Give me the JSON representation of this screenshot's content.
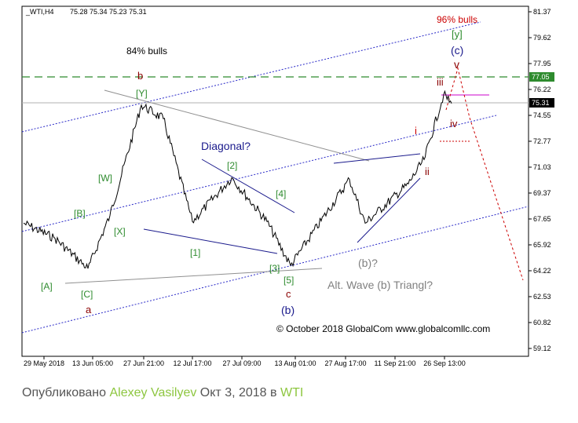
{
  "chart_data": {
    "type": "line",
    "symbol": "_WTI,H4",
    "ohlc_header": "75.28 75.34 75.23 75.31",
    "y_ticks": [
      "81.37",
      "79.62",
      "77.95",
      "76.22",
      "74.55",
      "72.77",
      "71.03",
      "69.37",
      "67.65",
      "65.92",
      "64.22",
      "62.53",
      "60.82",
      "59.12"
    ],
    "x_ticks": [
      "29 May 2018",
      "13 Jun 05:00",
      "27 Jun 21:00",
      "12 Jul 17:00",
      "27 Jul 09:00",
      "13 Aug 01:00",
      "27 Aug 17:00",
      "11 Sep 21:00",
      "26 Sep 13:00"
    ],
    "ylim": [
      59.12,
      81.37
    ],
    "price_labels": {
      "level_line": "77.05",
      "current": "75.31"
    },
    "key_points": [
      {
        "x": "29 May 2018",
        "y": 67.4
      },
      {
        "x": "08 Jun",
        "y": 66.4
      },
      {
        "x": "13 Jun 05:00",
        "y": 64.4
      },
      {
        "x": "19 Jun",
        "y": 67.9
      },
      {
        "x": "27 Jun 21:00",
        "y": 75.2
      },
      {
        "x": "03 Jul",
        "y": 74.3
      },
      {
        "x": "12 Jul 17:00",
        "y": 67.5
      },
      {
        "x": "27 Jul 09:00",
        "y": 70.4
      },
      {
        "x": "06 Aug",
        "y": 67.5
      },
      {
        "x": "13 Aug 01:00",
        "y": 64.6
      },
      {
        "x": "27 Aug 17:00",
        "y": 70.3
      },
      {
        "x": "04 Sep",
        "y": 67.4
      },
      {
        "x": "11 Sep 21:00",
        "y": 70.0
      },
      {
        "x": "20 Sep",
        "y": 71.6
      },
      {
        "x": "26 Sep 13:00",
        "y": 75.9
      },
      {
        "x": "28 Sep",
        "y": 75.31
      }
    ],
    "annotations": {
      "pct_left": "84% bulls",
      "pct_right": "96% bulls",
      "diagonal": "Diagonal?",
      "alt_wave": "Alt. Wave (b) Triangl?",
      "b_q": "(b)?",
      "copyright": "© October 2018 GlobalCom www.globalcomllc.com",
      "y_bracket": "[y]",
      "c_paren": "(c)",
      "v": "v",
      "iii": "iii",
      "iv": "iv",
      "i": "i",
      "ii": "ii",
      "b": "b",
      "Y": "[Y]",
      "W": "[W]",
      "B": "[B]",
      "X": "[X]",
      "A": "[A]",
      "C": "[C]",
      "a": "a",
      "w2": "[2]",
      "w4": "[4]",
      "w1": "[1]",
      "w3": "[3]",
      "w5": "[5]",
      "c": "c",
      "b_paren": "(b)"
    }
  },
  "caption": {
    "prefix": "Опубликовано ",
    "author": "Alexey Vasilyev",
    "date": " Окт 3, 2018 в ",
    "instrument": "WTI"
  },
  "colors": {
    "green": "#2e8b2e",
    "darkred": "#8b0000",
    "red": "#cc0000",
    "navy": "#1a1a8c",
    "blue": "#2a2ac8",
    "gray": "#808080",
    "magenta": "#cc00cc"
  }
}
